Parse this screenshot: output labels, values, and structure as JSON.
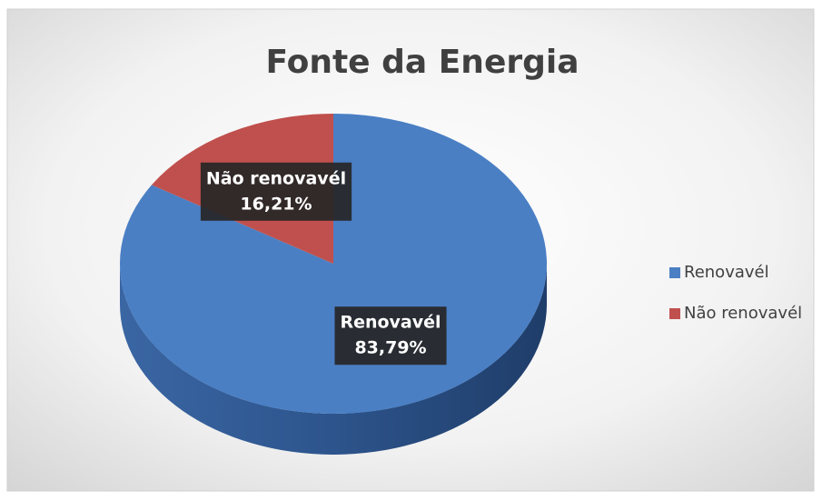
{
  "chart_data": {
    "type": "pie",
    "title": "Fonte da Energia",
    "categories": [
      "Renovavél",
      "Não renovavél"
    ],
    "values": [
      83.79,
      16.21
    ],
    "value_labels": [
      "83,79%",
      "16,21%"
    ],
    "colors": [
      "#4a7fc4",
      "#c0504d"
    ],
    "legend": "right"
  }
}
